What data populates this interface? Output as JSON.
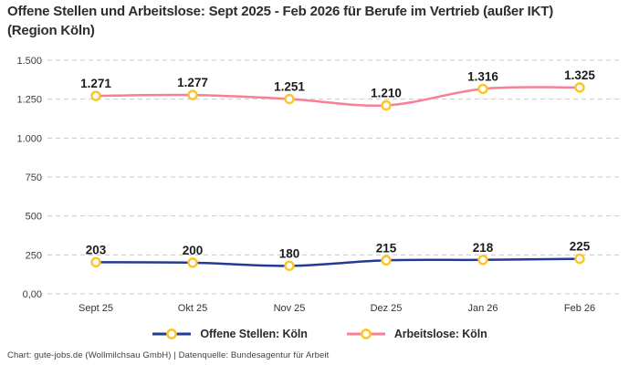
{
  "title": "Offene Stellen und Arbeitslose: Sept 2025 - Feb 2026 für Berufe im Vertrieb (außer IKT) (Region Köln)",
  "footer": "Chart: gute-jobs.de (Wollmilchsau GmbH) | Datenquelle: Bundesagentur für Arbeit",
  "colors": {
    "navy": "#243b96",
    "pink": "#f87f95",
    "marker_stroke": "#fcc425",
    "marker_fill": "#ffffff",
    "grid": "#c9c9c9",
    "tick_text": "#3d3d3d",
    "label_text": "#1c1c1c"
  },
  "chart_data": {
    "type": "line",
    "categories": [
      "Sept 25",
      "Okt 25",
      "Nov 25",
      "Dez 25",
      "Jan 26",
      "Feb 26"
    ],
    "series": [
      {
        "name": "Offene Stellen: Köln",
        "color": "#243b96",
        "values": [
          203,
          200,
          180,
          215,
          218,
          225
        ],
        "labels": [
          "203",
          "200",
          "180",
          "215",
          "218",
          "225"
        ]
      },
      {
        "name": "Arbeitslose: Köln",
        "color": "#f87f95",
        "values": [
          1271,
          1277,
          1251,
          1210,
          1316,
          1325
        ],
        "labels": [
          "1.271",
          "1.277",
          "1.251",
          "1.210",
          "1.316",
          "1.325"
        ]
      }
    ],
    "y_ticks": [
      {
        "value": 0,
        "label": "0,00"
      },
      {
        "value": 250,
        "label": "250"
      },
      {
        "value": 500,
        "label": "500"
      },
      {
        "value": 750,
        "label": "750"
      },
      {
        "value": 1000,
        "label": "1.000"
      },
      {
        "value": 1250,
        "label": "1.250"
      },
      {
        "value": 1500,
        "label": "1.500"
      }
    ],
    "ylim": [
      0,
      1500
    ],
    "grid": "dashed-horizontal",
    "legend_position": "bottom",
    "marker": {
      "shape": "circle",
      "fill": "#ffffff",
      "stroke": "#fcc425"
    }
  }
}
